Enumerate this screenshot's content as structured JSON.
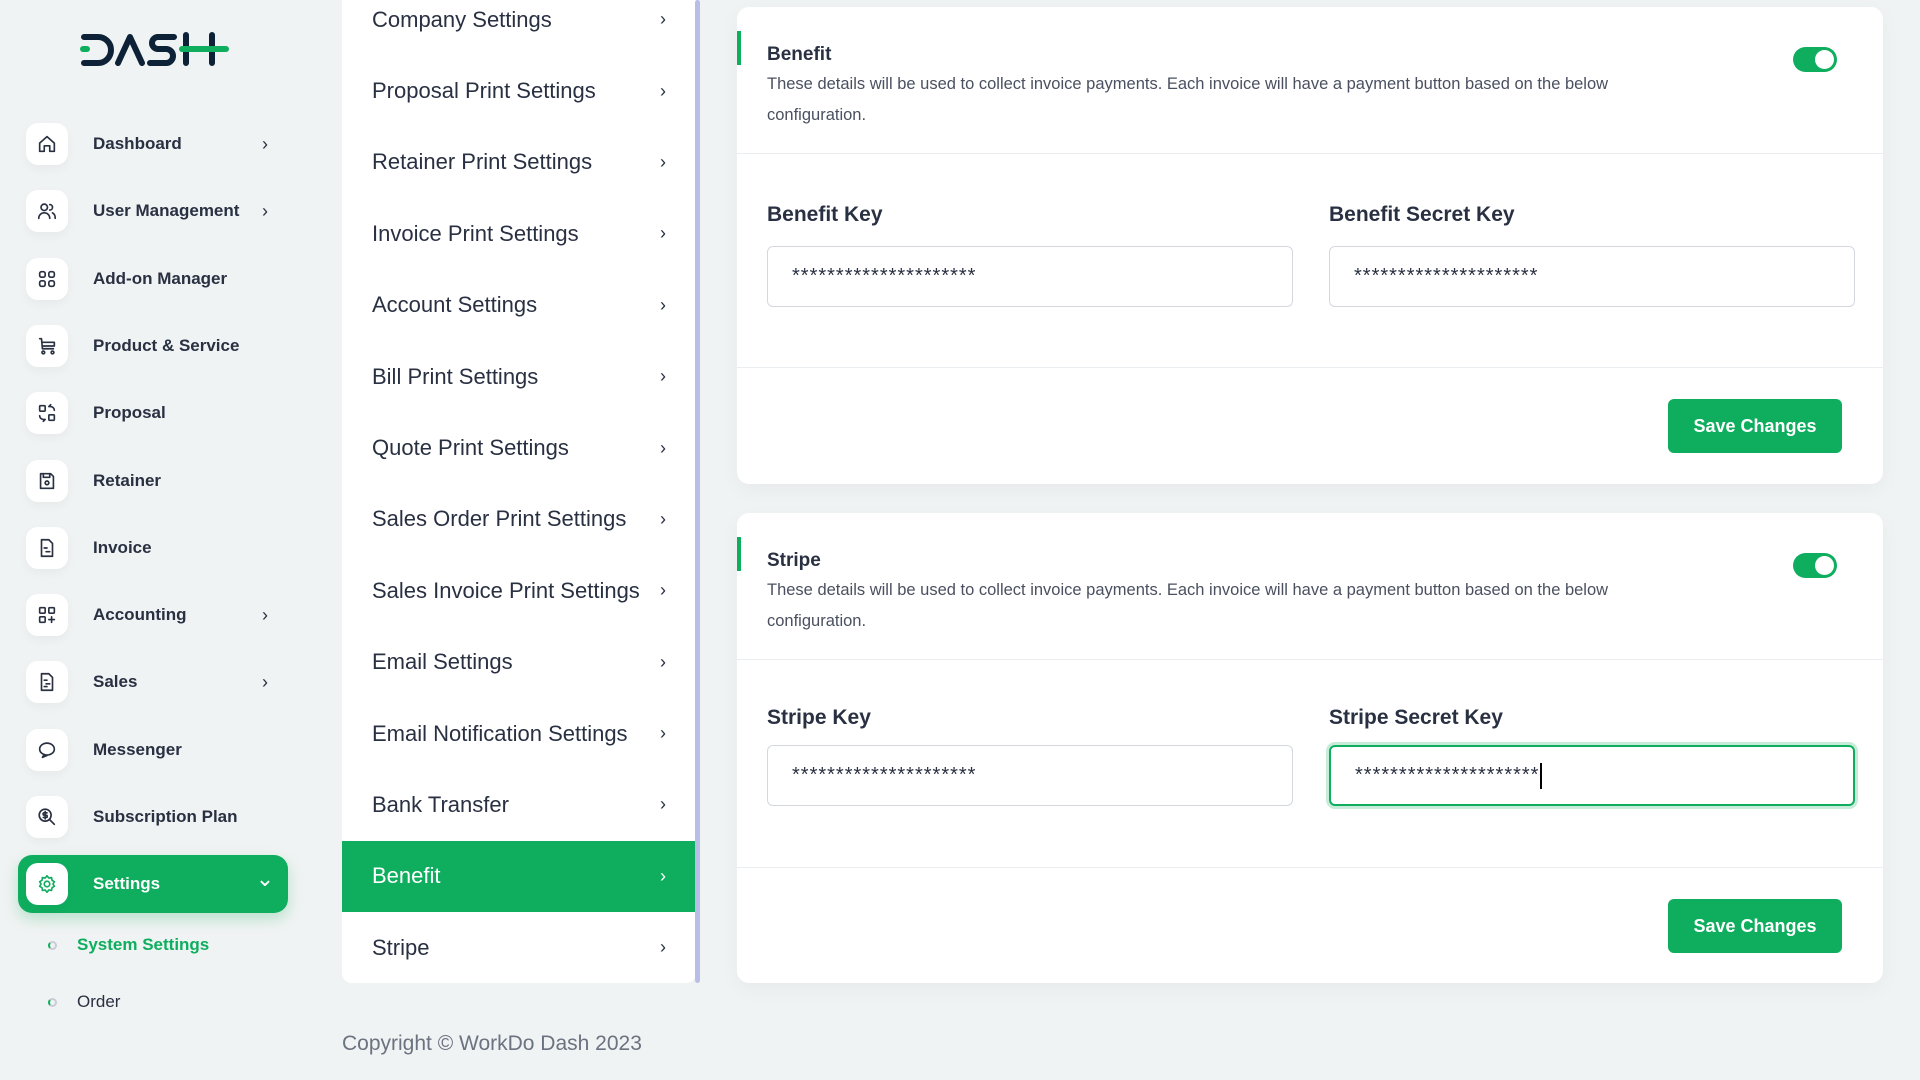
{
  "brand": {
    "logo_text": "DASH",
    "accent": "#0fae5f"
  },
  "sidebar": {
    "items": [
      {
        "label": "Dashboard",
        "icon": "home-icon",
        "chevron": true
      },
      {
        "label": "User Management",
        "icon": "users-icon",
        "chevron": true
      },
      {
        "label": "Add-on Manager",
        "icon": "apps-icon",
        "chevron": false
      },
      {
        "label": "Product & Service",
        "icon": "cart-icon",
        "chevron": false
      },
      {
        "label": "Proposal",
        "icon": "swap-icon",
        "chevron": false
      },
      {
        "label": "Retainer",
        "icon": "save-icon",
        "chevron": false
      },
      {
        "label": "Invoice",
        "icon": "file-icon",
        "chevron": false
      },
      {
        "label": "Accounting",
        "icon": "grid-plus-icon",
        "chevron": true
      },
      {
        "label": "Sales",
        "icon": "file-text-icon",
        "chevron": true
      },
      {
        "label": "Messenger",
        "icon": "chat-icon",
        "chevron": false
      },
      {
        "label": "Subscription Plan",
        "icon": "search-dollar-icon",
        "chevron": false
      },
      {
        "label": "Settings",
        "icon": "gear-icon",
        "chevron": true,
        "active": true
      }
    ],
    "subitems": [
      {
        "label": "System Settings",
        "active": true
      },
      {
        "label": "Order"
      }
    ]
  },
  "settings_menu": [
    "Company Settings",
    "Proposal Print Settings",
    "Retainer Print Settings",
    "Invoice Print Settings",
    "Account Settings",
    "Bill Print Settings",
    "Quote Print Settings",
    "Sales Order Print Settings",
    "Sales Invoice Print Settings",
    "Email Settings",
    "Email Notification Settings",
    "Bank Transfer",
    "Benefit",
    "Stripe"
  ],
  "settings_menu_active": "Benefit",
  "cards": [
    {
      "title": "Benefit",
      "description": "These details will be used to collect invoice payments. Each invoice will have a payment button based on the below configuration.",
      "enabled": true,
      "key_label": "Benefit Key",
      "key_value": "*********************",
      "secret_label": "Benefit Secret Key",
      "secret_value": "*********************",
      "save_label": "Save Changes"
    },
    {
      "title": "Stripe",
      "description": "These details will be used to collect invoice payments. Each invoice will have a payment button based on the below configuration.",
      "enabled": true,
      "key_label": "Stripe Key",
      "key_value": "*********************",
      "secret_label": "Stripe Secret Key",
      "secret_value": "*********************",
      "save_label": "Save Changes"
    }
  ],
  "footer": {
    "copyright": "Copyright © WorkDo Dash 2023"
  }
}
